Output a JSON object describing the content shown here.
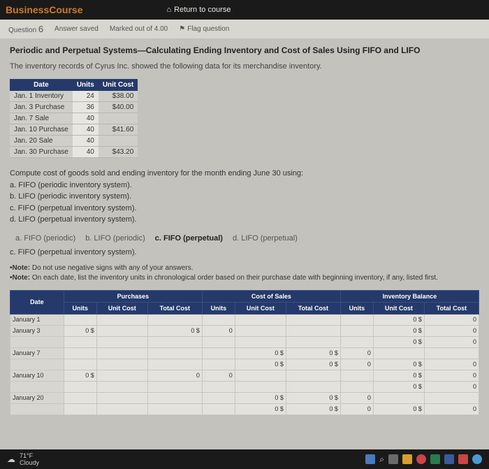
{
  "topbar": {
    "logo_text": "BusinessCourse",
    "return_label": "Return to course"
  },
  "qbar": {
    "question_label": "Question",
    "question_num": "6",
    "answer_status": "Answer saved",
    "marked": "Marked out of 4.00",
    "flag_label": "Flag question"
  },
  "heading": "Periodic and Perpetual Systems—Calculating Ending Inventory and Cost of Sales Using FIFO and LIFO",
  "intro": "The inventory records of Cyrus Inc. showed the following data for its merchandise inventory.",
  "inv_table": {
    "headers": [
      "Date",
      "Units",
      "Unit Cost"
    ],
    "rows": [
      [
        "Jan. 1 Inventory",
        "24",
        "$38.00"
      ],
      [
        "Jan. 3 Purchase",
        "36",
        "$40.00"
      ],
      [
        "Jan. 7 Sale",
        "40",
        ""
      ],
      [
        "Jan. 10 Purchase",
        "40",
        "$41.60"
      ],
      [
        "Jan. 20 Sale",
        "40",
        ""
      ],
      [
        "Jan. 30 Purchase",
        "40",
        "$43.20"
      ]
    ]
  },
  "compute": {
    "lead": "Compute cost of goods sold and ending inventory for the month ending June 30 using:",
    "a": "a. FIFO (periodic inventory system).",
    "b": "b. LIFO (periodic inventory system).",
    "c": "c. FIFO (perpetual inventory system).",
    "d": "d. LIFO (perpetual inventory system)."
  },
  "tabs": {
    "a": "a. FIFO (periodic)",
    "b": "b. LIFO (periodic)",
    "c": "c. FIFO (perpetual)",
    "d": "d. LIFO (perpetual)"
  },
  "subtitle": "c. FIFO (perpetual inventory system).",
  "note1": "•Note: Do not use negative signs with any of your answers.",
  "note2": "•Note: On each date, list the inventory units in chronological order based on their purchase date with beginning inventory, if any, listed first.",
  "big_table": {
    "group_headers": [
      "",
      "Purchases",
      "Cost of Sales",
      "Inventory Balance"
    ],
    "sub_headers": [
      "Date",
      "Units",
      "Unit Cost",
      "Total Cost",
      "Units",
      "Unit Cost",
      "Total Cost",
      "Units",
      "Unit Cost",
      "Total Cost"
    ],
    "rows": [
      {
        "date": "January 1",
        "p_u": "",
        "p_uc": "",
        "p_tc": "",
        "c_u": "",
        "c_uc": "",
        "c_tc": "",
        "i_u": "",
        "i_uc": "0 $",
        "i_tc": "0 $",
        "i_t": "0"
      },
      {
        "date": "January 3",
        "p_u": "0 $",
        "p_uc": "",
        "p_tc": "0 $",
        "c_u": "0",
        "c_uc": "",
        "c_tc": "",
        "i_u": "",
        "i_uc": "0 $",
        "i_tc": "0 $",
        "i_t": "0"
      },
      {
        "date": "",
        "p_u": "",
        "p_uc": "",
        "p_tc": "",
        "c_u": "",
        "c_uc": "",
        "c_tc": "",
        "i_u": "",
        "i_uc": "0 $",
        "i_tc": "0 $",
        "i_t": "0"
      },
      {
        "date": "January 7",
        "p_u": "",
        "p_uc": "",
        "p_tc": "",
        "c_u": "",
        "c_uc": "0 $",
        "c_tc": "0 $",
        "i_u": "0",
        "i_uc": "",
        "i_tc": "",
        "i_t": ""
      },
      {
        "date": "",
        "p_u": "",
        "p_uc": "",
        "p_tc": "",
        "c_u": "",
        "c_uc": "0 $",
        "c_tc": "0 $",
        "i_u": "0",
        "i_uc": "0 $",
        "i_tc": "0 $",
        "i_t": "0"
      },
      {
        "date": "January 10",
        "p_u": "0 $",
        "p_uc": "",
        "p_tc": "0",
        "c_u": "0",
        "c_uc": "",
        "c_tc": "",
        "i_u": "",
        "i_uc": "0 $",
        "i_tc": "0 $",
        "i_t": "0"
      },
      {
        "date": "",
        "p_u": "",
        "p_uc": "",
        "p_tc": "",
        "c_u": "",
        "c_uc": "",
        "c_tc": "",
        "i_u": "",
        "i_uc": "0 $",
        "i_tc": "0 $",
        "i_t": "0"
      },
      {
        "date": "January 20",
        "p_u": "",
        "p_uc": "",
        "p_tc": "",
        "c_u": "",
        "c_uc": "0 $",
        "c_tc": "0 $",
        "i_u": "0",
        "i_uc": "",
        "i_tc": "",
        "i_t": ""
      },
      {
        "date": "",
        "p_u": "",
        "p_uc": "",
        "p_tc": "",
        "c_u": "",
        "c_uc": "0 $",
        "c_tc": "0 $",
        "i_u": "0",
        "i_uc": "0 $",
        "i_tc": "0 $",
        "i_t": "0"
      }
    ]
  },
  "weather": {
    "temp": "71°F",
    "cond": "Cloudy"
  },
  "colors": {
    "header_bg": "#253a6b",
    "page_bg": "#c4c2bd",
    "topbar_bg": "#1a1a1a",
    "logo": "#d07a1f"
  }
}
